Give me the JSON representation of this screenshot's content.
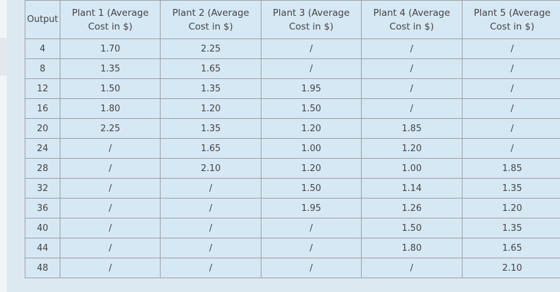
{
  "table": {
    "headers": [
      "Output",
      "Plant 1 (Average Cost in $)",
      "Plant 2 (Average Cost in $)",
      "Plant 3 (Average Cost in $)",
      "Plant 4 (Average Cost in $)",
      "Plant 5 (Average Cost in $)"
    ],
    "rows": [
      [
        "4",
        "1.70",
        "2.25",
        "/",
        "/",
        "/"
      ],
      [
        "8",
        "1.35",
        "1.65",
        "/",
        "/",
        "/"
      ],
      [
        "12",
        "1.50",
        "1.35",
        "1.95",
        "/",
        "/"
      ],
      [
        "16",
        "1.80",
        "1.20",
        "1.50",
        "/",
        "/"
      ],
      [
        "20",
        "2.25",
        "1.35",
        "1.20",
        "1.85",
        "/"
      ],
      [
        "24",
        "/",
        "1.65",
        "1.00",
        "1.20",
        "/"
      ],
      [
        "28",
        "/",
        "2.10",
        "1.20",
        "1.00",
        "1.85"
      ],
      [
        "32",
        "/",
        "/",
        "1.50",
        "1.14",
        "1.35"
      ],
      [
        "36",
        "/",
        "/",
        "1.95",
        "1.26",
        "1.20"
      ],
      [
        "40",
        "/",
        "/",
        "/",
        "1.50",
        "1.35"
      ],
      [
        "44",
        "/",
        "/",
        "/",
        "1.80",
        "1.65"
      ],
      [
        "48",
        "/",
        "/",
        "/",
        "/",
        "2.10"
      ]
    ]
  }
}
